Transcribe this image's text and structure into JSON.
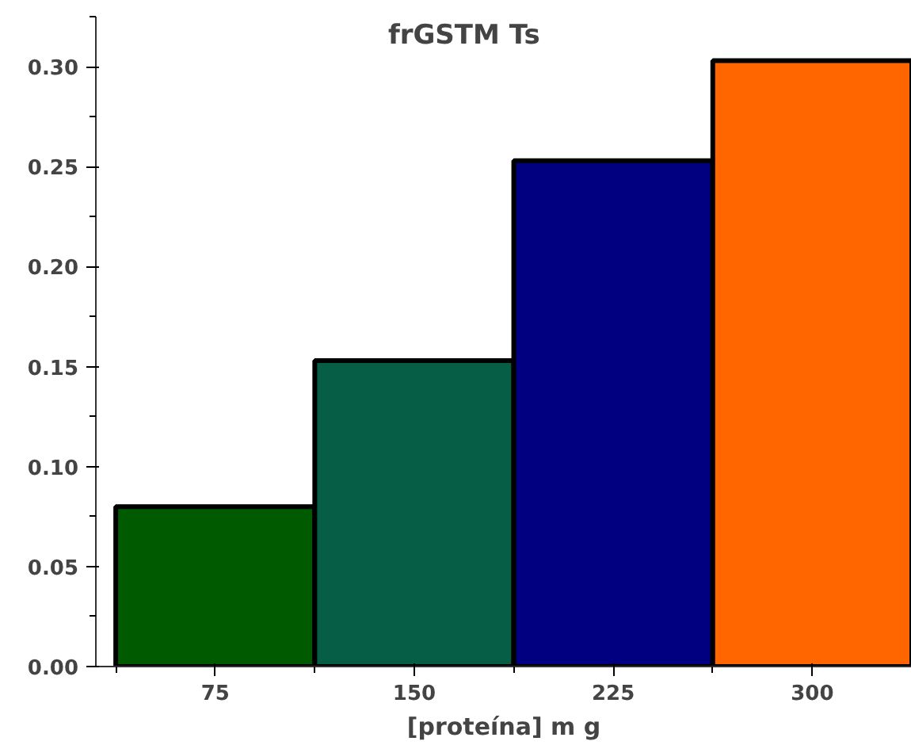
{
  "chart_data": {
    "type": "bar",
    "title": "frGSTM Ts",
    "xlabel": "[proteína] m g",
    "categories": [
      "75",
      "150",
      "225",
      "300"
    ],
    "values": [
      0.08,
      0.153,
      0.253,
      0.303
    ],
    "colors": [
      "#005a00",
      "#055e45",
      "#000080",
      "#ff6600"
    ],
    "ylim": [
      0,
      0.325
    ],
    "yticks": [
      {
        "value": 0.0,
        "label": "0.00"
      },
      {
        "value": 0.05,
        "label": "0.05"
      },
      {
        "value": 0.1,
        "label": "0.10"
      },
      {
        "value": 0.15,
        "label": "0.15"
      },
      {
        "value": 0.2,
        "label": "0.20"
      },
      {
        "value": 0.25,
        "label": "0.25"
      },
      {
        "value": 0.3,
        "label": "0.30"
      }
    ],
    "grid": false
  }
}
